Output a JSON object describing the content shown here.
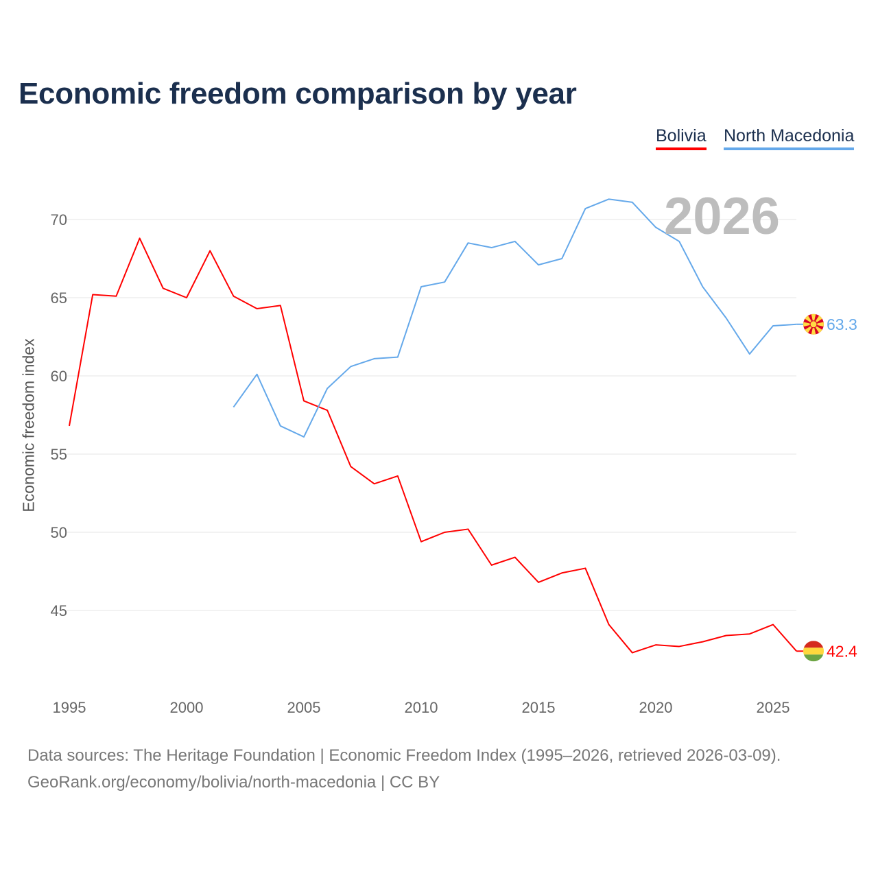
{
  "title": "Economic freedom comparison by year",
  "year_watermark": "2026",
  "footer": {
    "line1": "Data sources: The Heritage Foundation | Economic Freedom Index (1995–2026, retrieved 2026-03-09).",
    "line2": "GeoRank.org/economy/bolivia/north-macedonia | CC BY"
  },
  "chart_data": {
    "type": "line",
    "title": "Economic freedom comparison by year",
    "xlabel": "",
    "ylabel": "Economic freedom index",
    "xlim": [
      1995,
      2026
    ],
    "ylim": [
      40.5,
      73
    ],
    "x_ticks": [
      1995,
      2000,
      2005,
      2010,
      2015,
      2020,
      2025
    ],
    "y_ticks": [
      45,
      50,
      55,
      60,
      65,
      70
    ],
    "grid": true,
    "legend_position": "top-right",
    "series": [
      {
        "name": "Bolivia",
        "color": "#ff0000",
        "flag": "bolivia-flag",
        "end_label": "42.4",
        "x": [
          1995,
          1996,
          1997,
          1998,
          1999,
          2000,
          2001,
          2002,
          2003,
          2004,
          2005,
          2006,
          2007,
          2008,
          2009,
          2010,
          2011,
          2012,
          2013,
          2014,
          2015,
          2016,
          2017,
          2018,
          2019,
          2020,
          2021,
          2022,
          2023,
          2024,
          2025,
          2026
        ],
        "values": [
          56.8,
          65.2,
          65.1,
          68.8,
          65.6,
          65.0,
          68.0,
          65.1,
          64.3,
          64.5,
          58.4,
          57.8,
          54.2,
          53.1,
          53.6,
          49.4,
          50.0,
          50.2,
          47.9,
          48.4,
          46.8,
          47.4,
          47.7,
          44.1,
          42.3,
          42.8,
          42.7,
          43.0,
          43.4,
          43.5,
          44.1,
          42.4
        ]
      },
      {
        "name": "North Macedonia",
        "color": "#64a8ea",
        "flag": "north-macedonia-flag",
        "end_label": "63.3",
        "x": [
          2002,
          2003,
          2004,
          2005,
          2006,
          2007,
          2008,
          2009,
          2010,
          2011,
          2012,
          2013,
          2014,
          2015,
          2016,
          2017,
          2018,
          2019,
          2020,
          2021,
          2022,
          2023,
          2024,
          2025,
          2026
        ],
        "values": [
          58.0,
          60.1,
          56.8,
          56.1,
          59.2,
          60.6,
          61.1,
          61.2,
          65.7,
          66.0,
          68.5,
          68.2,
          68.6,
          67.1,
          67.5,
          70.7,
          71.3,
          71.1,
          69.5,
          68.6,
          65.7,
          63.7,
          61.4,
          63.2,
          63.3
        ]
      }
    ]
  }
}
